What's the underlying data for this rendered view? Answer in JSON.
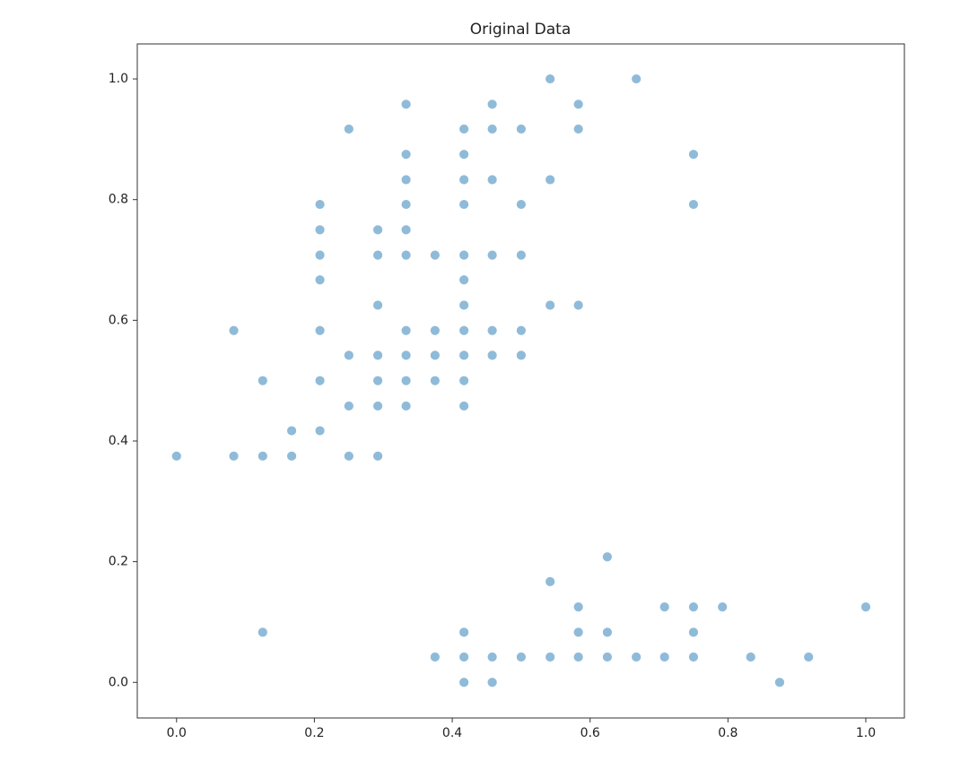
{
  "chart_data": {
    "type": "scatter",
    "title": "Original Data",
    "series": [
      {
        "color": "#1f77b4",
        "x": [
          0,
          0.083,
          0.083,
          0.125,
          0.125,
          0.125,
          0.167,
          0.167,
          0.208,
          0.208,
          0.208,
          0.208,
          0.208,
          0.208,
          0.208,
          0.25,
          0.25,
          0.25,
          0.25,
          0.292,
          0.292,
          0.292,
          0.292,
          0.292,
          0.292,
          0.292,
          0.333,
          0.333,
          0.333,
          0.333,
          0.333,
          0.333,
          0.333,
          0.333,
          0.333,
          0.333,
          0.375,
          0.375,
          0.375,
          0.375,
          0.375,
          0.417,
          0.417,
          0.417,
          0.417,
          0.417,
          0.417,
          0.417,
          0.417,
          0.417,
          0.417,
          0.417,
          0.417,
          0.417,
          0.417,
          0.458,
          0.458,
          0.458,
          0.458,
          0.458,
          0.458,
          0.458,
          0.458,
          0.5,
          0.5,
          0.5,
          0.5,
          0.5,
          0.5,
          0.542,
          0.542,
          0.542,
          0.542,
          0.542,
          0.583,
          0.583,
          0.583,
          0.583,
          0.583,
          0.583,
          0.625,
          0.625,
          0.625,
          0.667,
          0.667,
          0.708,
          0.708,
          0.75,
          0.75,
          0.75,
          0.75,
          0.75,
          0.792,
          0.833,
          0.875,
          0.917,
          1
        ],
        "y": [
          0.375,
          0.583,
          0.375,
          0.5,
          0.375,
          0.083,
          0.417,
          0.375,
          0.792,
          0.75,
          0.708,
          0.667,
          0.583,
          0.5,
          0.417,
          0.917,
          0.542,
          0.458,
          0.375,
          0.75,
          0.708,
          0.625,
          0.542,
          0.5,
          0.458,
          0.375,
          0.958,
          0.875,
          0.833,
          0.792,
          0.75,
          0.708,
          0.583,
          0.542,
          0.5,
          0.458,
          0.708,
          0.583,
          0.542,
          0.5,
          0.042,
          0.917,
          0.875,
          0.833,
          0.792,
          0.708,
          0.667,
          0.625,
          0.583,
          0.542,
          0.5,
          0.458,
          0.083,
          0.042,
          0,
          0.958,
          0.917,
          0.833,
          0.708,
          0.583,
          0.542,
          0.042,
          0,
          0.917,
          0.792,
          0.708,
          0.583,
          0.542,
          0.042,
          1,
          0.833,
          0.625,
          0.167,
          0.042,
          0.958,
          0.917,
          0.625,
          0.125,
          0.083,
          0.042,
          0.208,
          0.083,
          0.042,
          1,
          0.042,
          0.125,
          0.042,
          0.875,
          0.792,
          0.125,
          0.083,
          0.042,
          0.125,
          0.042,
          0,
          0.042,
          0.125
        ]
      }
    ],
    "xlim": [
      -0.057,
      1.056
    ],
    "ylim": [
      -0.059,
      1.058
    ],
    "xticks": [
      {
        "value": 0,
        "label": "0.0"
      },
      0.2,
      0.4,
      0.6,
      0.8,
      {
        "value": 1,
        "label": "1.0"
      }
    ],
    "yticks": [
      {
        "value": 0,
        "label": "0.0"
      },
      0.2,
      0.4,
      0.6,
      0.8,
      {
        "value": 1,
        "label": "1.0"
      }
    ],
    "grid": false
  }
}
